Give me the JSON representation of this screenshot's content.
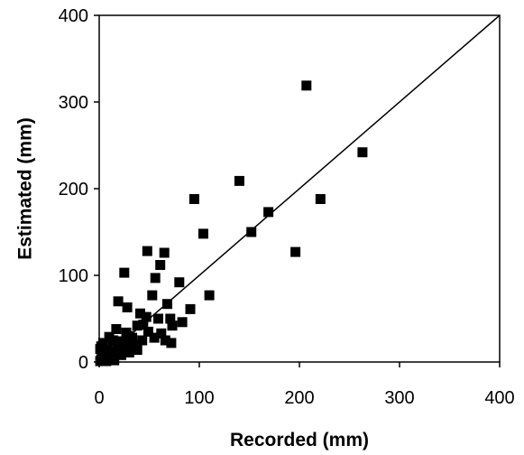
{
  "chart_data": {
    "type": "scatter",
    "title": "",
    "xlabel": "Recorded (mm)",
    "ylabel": "Estimated (mm)",
    "xlim": [
      0,
      400
    ],
    "ylim": [
      0,
      400
    ],
    "xticks": [
      0,
      100,
      200,
      300,
      400
    ],
    "yticks": [
      0,
      100,
      200,
      300,
      400
    ],
    "grid": false,
    "legend": "none",
    "marker": "square",
    "marker_color": "#000000",
    "reference_line": {
      "from": [
        0,
        0
      ],
      "to": [
        400,
        400
      ],
      "color": "#000000"
    },
    "series": [
      {
        "points": [
          [
            207,
            319
          ],
          [
            263,
            242
          ],
          [
            140,
            209
          ],
          [
            95,
            188
          ],
          [
            221,
            188
          ],
          [
            169,
            173
          ],
          [
            152,
            150
          ],
          [
            104,
            148
          ],
          [
            196,
            127
          ],
          [
            48,
            128
          ],
          [
            65,
            126
          ],
          [
            61,
            112
          ],
          [
            25,
            103
          ],
          [
            56,
            97
          ],
          [
            80,
            92
          ],
          [
            110,
            77
          ],
          [
            53,
            77
          ],
          [
            19,
            70
          ],
          [
            68,
            67
          ],
          [
            28,
            63
          ],
          [
            91,
            61
          ],
          [
            41,
            56
          ],
          [
            59,
            50
          ],
          [
            47,
            52
          ],
          [
            71,
            50
          ],
          [
            83,
            46
          ],
          [
            73,
            42
          ],
          [
            38,
            42
          ],
          [
            17,
            38
          ],
          [
            49,
            35
          ],
          [
            62,
            33
          ],
          [
            30,
            30
          ],
          [
            10,
            29
          ],
          [
            55,
            28
          ],
          [
            66,
            25
          ],
          [
            43,
            25
          ],
          [
            72,
            22
          ],
          [
            14,
            25
          ],
          [
            21,
            24
          ],
          [
            35,
            20
          ],
          [
            26,
            18
          ],
          [
            4,
            22
          ],
          [
            18,
            16
          ],
          [
            8,
            14
          ],
          [
            38,
            14
          ],
          [
            12,
            12
          ],
          [
            30,
            11
          ],
          [
            16,
            9
          ],
          [
            6,
            10
          ],
          [
            22,
            8
          ],
          [
            3,
            7
          ],
          [
            9,
            5
          ],
          [
            13,
            4
          ],
          [
            2,
            3
          ],
          [
            5,
            2
          ],
          [
            1,
            1
          ],
          [
            7,
            1
          ],
          [
            15,
            2
          ],
          [
            11,
            7
          ],
          [
            20,
            12
          ],
          [
            1,
            15
          ],
          [
            3,
            12
          ],
          [
            2,
            18
          ],
          [
            6,
            5
          ],
          [
            4,
            4
          ],
          [
            10,
            3
          ],
          [
            24,
            22
          ],
          [
            33,
            28
          ],
          [
            44,
            43
          ],
          [
            27,
            34
          ]
        ]
      }
    ]
  }
}
